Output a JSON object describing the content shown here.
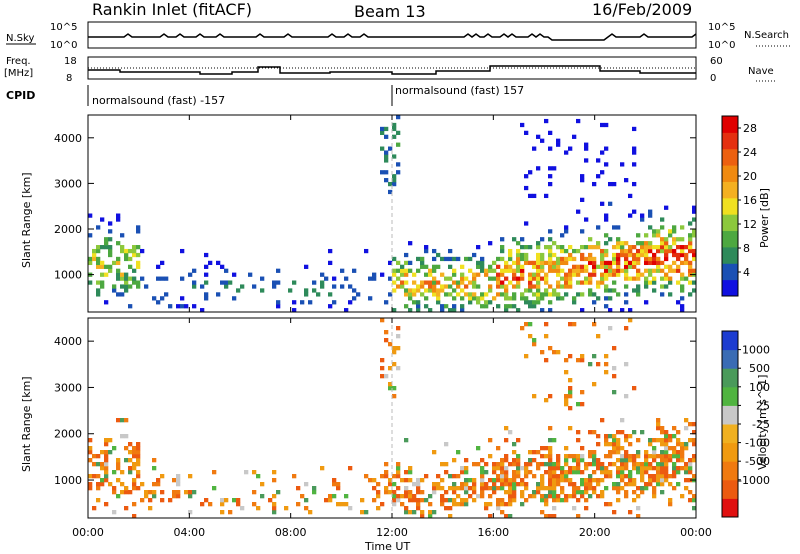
{
  "header": {
    "station": "Rankin Inlet (fitACF)",
    "beam": "Beam 13",
    "date": "16/Feb/2009"
  },
  "top_panels": {
    "nsky_label": "N.Sky",
    "nsky_ticks": [
      "10^5",
      "10^0"
    ],
    "nsearch_label": "N.Search",
    "freq_label_1": "Freq.",
    "freq_label_2": "[MHz]",
    "freq_ticks": [
      "18",
      "8"
    ],
    "nave_ticks": [
      "60",
      "0"
    ],
    "nave_label": "Nave",
    "cpid_label": "CPID",
    "cpid_segments": [
      "normalsound (fast) -157",
      "normalsound (fast) 157"
    ]
  },
  "colors": {
    "power_scale": [
      "#1010e0",
      "#1a50b4",
      "#2e8a5a",
      "#4da840",
      "#8cc83c",
      "#f0e020",
      "#f4b020",
      "#f08a10",
      "#ec6010",
      "#e43010",
      "#e00000"
    ],
    "velocity_scale": [
      "#e01010",
      "#ec5a10",
      "#f07a10",
      "#f09a10",
      "#f0b020",
      "#c8c8c8",
      "#50b440",
      "#4a9a5a",
      "#3a6cb4",
      "#1c3cd0"
    ]
  },
  "chart_data": [
    {
      "type": "heatmap",
      "title": "Power",
      "xlabel": "Time UT",
      "ylabel": "Slant Range [km]",
      "xlim": [
        "00:00",
        "24:00"
      ],
      "ylim": [
        180,
        4500
      ],
      "x_ticks": [
        "00:00",
        "04:00",
        "08:00",
        "12:00",
        "16:00",
        "20:00",
        "00:00"
      ],
      "y_ticks": [
        1000,
        2000,
        3000,
        4000
      ],
      "colorbar_label": "Power [dB]",
      "colorbar_ticks": [
        4,
        8,
        12,
        16,
        20,
        24,
        28
      ],
      "colorbar_range": [
        0,
        30
      ]
    },
    {
      "type": "heatmap",
      "title": "Velocity",
      "xlabel": "Time UT",
      "ylabel": "Slant Range [km]",
      "xlim": [
        "00:00",
        "24:00"
      ],
      "ylim": [
        180,
        4500
      ],
      "x_ticks": [
        "00:00",
        "04:00",
        "08:00",
        "12:00",
        "16:00",
        "20:00",
        "00:00"
      ],
      "y_ticks": [
        1000,
        2000,
        3000,
        4000
      ],
      "colorbar_label": "Velocity [m s^-1]",
      "colorbar_ticks": [
        "1000",
        "500",
        "100",
        "25",
        "-25",
        "-100",
        "-500",
        "-1000"
      ]
    }
  ]
}
